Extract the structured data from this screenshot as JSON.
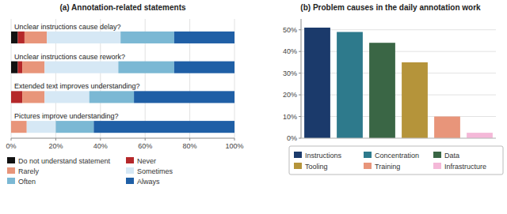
{
  "chart_data": [
    {
      "type": "bar",
      "orientation": "horizontal",
      "stacked": true,
      "title": "(a) Annotation-related statements",
      "categories": [
        "Unclear instructions cause delay?",
        "Unclear instructions cause rework?",
        "Extended text improves understanding?",
        "Pictures improve understanding?"
      ],
      "series": [
        {
          "name": "Do not understand statement",
          "color": "#111111",
          "values": [
            3,
            3,
            0,
            0
          ]
        },
        {
          "name": "Never",
          "color": "#b5282a",
          "values": [
            3,
            2,
            5,
            0
          ]
        },
        {
          "name": "Rarely",
          "color": "#e8957a",
          "values": [
            10,
            10,
            10,
            7
          ]
        },
        {
          "name": "Sometimes",
          "color": "#d6e8f5",
          "values": [
            33,
            33,
            20,
            13
          ]
        },
        {
          "name": "Often",
          "color": "#7bb8d4",
          "values": [
            24,
            25,
            20,
            17
          ]
        },
        {
          "name": "Always",
          "color": "#1f5fa6",
          "values": [
            27,
            27,
            45,
            63
          ]
        }
      ],
      "xlim": [
        0,
        100
      ],
      "xticks": [
        {
          "value": 0,
          "label": "0%"
        },
        {
          "value": 20,
          "label": "20%"
        },
        {
          "value": 40,
          "label": "40%"
        },
        {
          "value": 60,
          "label": "60%"
        },
        {
          "value": 80,
          "label": "80%"
        },
        {
          "value": 100,
          "label": "100%"
        }
      ],
      "grid": true,
      "legend": "bottom"
    },
    {
      "type": "bar",
      "title": "(b) Problem causes in the daily annotation work",
      "categories": [
        "Instructions",
        "Concentration",
        "Data",
        "Tooling",
        "Training",
        "Infrastructure"
      ],
      "values": [
        51,
        49,
        44,
        35,
        10,
        2.5
      ],
      "colors": [
        "#1b3a6b",
        "#2e7a8c",
        "#3a6645",
        "#b5943a",
        "#e8957a",
        "#f4b8d8"
      ],
      "ylim": [
        0,
        55
      ],
      "yticks": [
        {
          "value": 0,
          "label": "0%"
        },
        {
          "value": 10,
          "label": "10%"
        },
        {
          "value": 20,
          "label": "20%"
        },
        {
          "value": 30,
          "label": "30%"
        },
        {
          "value": 40,
          "label": "40%"
        },
        {
          "value": 50,
          "label": "50%"
        }
      ],
      "grid": true,
      "legend": "bottom",
      "tick_labels": "y"
    }
  ]
}
